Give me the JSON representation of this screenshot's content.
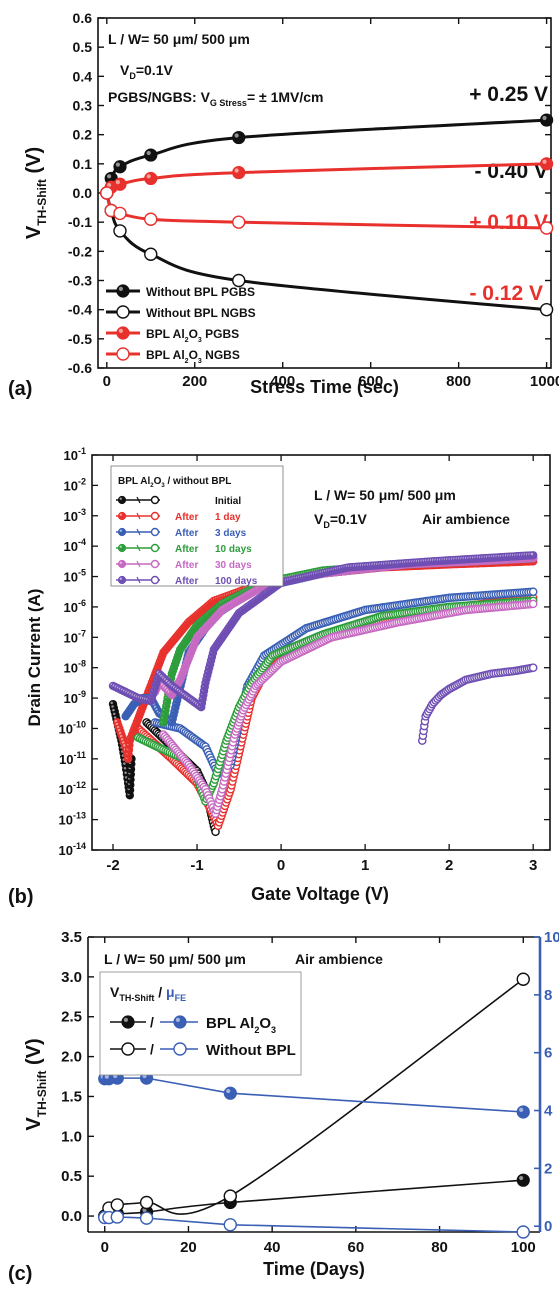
{
  "colors": {
    "black": "#111111",
    "red": "#e8302c",
    "blue": "#3a5fb5",
    "green": "#2e9d3c",
    "pink": "#c66ac2",
    "purple": "#6f4fb3",
    "white": "#ffffff"
  },
  "chart_data": [
    {
      "type": "line",
      "panel_label": "(a)",
      "xlabel": "Stress Time (sec)",
      "ylabel_main": "V",
      "ylabel_sub": "TH-Shift",
      "ylabel_unit": " (V)",
      "xlim": [
        -20,
        1010
      ],
      "ylim": [
        -0.6,
        0.6
      ],
      "xticks": [
        0,
        200,
        400,
        600,
        800,
        1000
      ],
      "yticks": [
        -0.6,
        -0.5,
        -0.4,
        -0.3,
        -0.2,
        -0.1,
        0.0,
        0.1,
        0.2,
        0.3,
        0.4,
        0.5,
        0.6
      ],
      "ytick_labels": [
        "-0.6",
        "-0.5",
        "-0.4",
        "-0.3",
        "-0.2",
        "-0.1",
        "0.0",
        "0.1",
        "0.2",
        "0.3",
        "0.4",
        "0.5",
        "0.6"
      ],
      "info_lines": [
        "L / W= 50 μm/ 500 μm",
        "V_D=0.1V",
        "PGBS/NGBS: V_G Stress = ± 1MV/cm"
      ],
      "info_line1": "L / W= 50 μm/ 500 μm",
      "info_vd": {
        "main": "V",
        "sub": "D",
        "rest": "=0.1V"
      },
      "info_stress": {
        "pre": "PGBS/NGBS: V",
        "sub": "G Stress",
        "post": "= ± 1MV/cm"
      },
      "series": [
        {
          "name": "Without BPL PGBS",
          "legend_parts": [
            "Without BPL PGBS"
          ],
          "color": "black",
          "filled": true,
          "x": [
            0,
            10,
            30,
            100,
            300,
            1000
          ],
          "y": [
            0.0,
            0.05,
            0.09,
            0.13,
            0.19,
            0.25
          ],
          "annotation": "+ 0.25 V"
        },
        {
          "name": "Without BPL NGBS",
          "legend_parts": [
            "Without BPL NGBS"
          ],
          "color": "black",
          "filled": false,
          "x": [
            0,
            10,
            30,
            100,
            300,
            1000
          ],
          "y": [
            0.0,
            -0.06,
            -0.13,
            -0.21,
            -0.3,
            -0.4
          ],
          "annotation": "- 0.40 V"
        },
        {
          "name": "BPL Al2O3 PGBS",
          "legend_parts": [
            "BPL Al",
            "2",
            "O",
            "3",
            " PGBS"
          ],
          "color": "red",
          "filled": true,
          "x": [
            0,
            10,
            30,
            100,
            300,
            1000
          ],
          "y": [
            0.0,
            0.02,
            0.03,
            0.05,
            0.07,
            0.1
          ],
          "annotation": "+ 0.10 V"
        },
        {
          "name": "BPL Al2O3 NGBS",
          "legend_parts": [
            "BPL Al",
            "2",
            "O",
            "3",
            " NGBS"
          ],
          "color": "red",
          "filled": false,
          "x": [
            0,
            10,
            30,
            100,
            300,
            1000
          ],
          "y": [
            0.0,
            -0.06,
            -0.07,
            -0.09,
            -0.1,
            -0.12
          ],
          "annotation": "- 0.12 V"
        }
      ]
    },
    {
      "type": "scatter",
      "panel_label": "(b)",
      "xlabel": "Gate Voltage (V)",
      "ylabel": "Drain Current (A)",
      "xlim": [
        -2.25,
        3.2
      ],
      "ylim_log10": [
        -14,
        -1
      ],
      "yscale": "log",
      "xticks": [
        -2,
        -1,
        0,
        1,
        2,
        3
      ],
      "ytick_exponents": [
        -14,
        -13,
        -12,
        -11,
        -10,
        -9,
        -8,
        -7,
        -6,
        -5,
        -4,
        -3,
        -2,
        -1
      ],
      "info_line1": "L / W= 50 μm/ 500 μm",
      "info_vd": {
        "main": "V",
        "sub": "D",
        "rest": "=0.1V"
      },
      "info_ambience": "Air ambience",
      "legend_title_parts": [
        "BPL Al",
        "2",
        "O",
        "3",
        " / without BPL"
      ],
      "series": [
        {
          "name": "Initial",
          "legend_after": "",
          "legend_label": "Initial",
          "color": "black",
          "filled_x": [
            -2.0,
            -1.95,
            -1.9,
            -1.85,
            -1.82,
            -1.8,
            -1.78
          ],
          "filled_logy": [
            -9.2,
            -9.8,
            -10.4,
            -11.2,
            -11.8,
            -12.2,
            -11.0
          ],
          "open_x": [
            -1.6,
            -1.3,
            -1.0,
            -0.9,
            -0.85,
            -0.8,
            -0.78
          ],
          "open_logy": [
            -9.8,
            -10.6,
            -11.4,
            -12.0,
            -12.6,
            -13.2,
            -13.4
          ]
        },
        {
          "name": "After 1 day",
          "legend_after": "After",
          "legend_label": "1 day",
          "color": "red",
          "filled_x": [
            -1.95,
            -1.9,
            -1.85,
            -1.82,
            -1.8,
            -1.4,
            -1.1,
            -0.8,
            -0.2,
            0.5,
            1.2,
            2.0,
            3.0
          ],
          "filled_logy": [
            -9.8,
            -10.2,
            -10.6,
            -11.0,
            -10.4,
            -7.5,
            -6.5,
            -5.8,
            -5.2,
            -4.9,
            -4.7,
            -4.6,
            -4.5
          ],
          "open_x": [
            -1.7,
            -1.3,
            -1.0,
            -0.85,
            -0.75,
            -0.6,
            -0.45,
            -0.35,
            -0.2,
            0.2,
            0.8,
            1.6,
            2.4,
            3.0
          ],
          "open_logy": [
            -10.0,
            -11.0,
            -11.8,
            -12.6,
            -13.2,
            -12.0,
            -10.2,
            -9.0,
            -8.2,
            -7.3,
            -6.7,
            -6.2,
            -5.9,
            -5.7
          ]
        },
        {
          "name": "After 3 days",
          "legend_after": "After",
          "legend_label": "3 days",
          "color": "blue",
          "filled_x": [
            -1.85,
            -1.75,
            -1.65,
            -1.55,
            -1.45,
            -1.3,
            -1.1,
            -0.8,
            -0.3,
            0.5,
            1.5,
            3.0
          ],
          "filled_logy": [
            -9.6,
            -9.2,
            -9.0,
            -9.0,
            -9.5,
            -9.8,
            -7.5,
            -6.3,
            -5.4,
            -4.9,
            -4.6,
            -4.4
          ],
          "open_x": [
            -1.5,
            -1.2,
            -0.9,
            -0.75,
            -0.6,
            -0.5,
            -0.4,
            -0.2,
            0.3,
            1.0,
            2.0,
            3.0
          ],
          "open_logy": [
            -9.8,
            -10.0,
            -10.6,
            -11.5,
            -11.2,
            -9.8,
            -8.6,
            -7.6,
            -6.7,
            -6.1,
            -5.7,
            -5.5
          ]
        },
        {
          "name": "After 10 days",
          "legend_after": "After",
          "legend_label": "10 days",
          "color": "green",
          "filled_x": [
            -1.4,
            -1.35,
            -1.3,
            -1.2,
            -1.0,
            -0.7,
            -0.2,
            0.5,
            1.5,
            2.3,
            3.0
          ],
          "filled_logy": [
            -9.8,
            -9.0,
            -8.2,
            -7.4,
            -6.6,
            -5.9,
            -5.2,
            -4.8,
            -4.6,
            -4.5,
            -4.4
          ],
          "open_x": [
            -1.7,
            -1.4,
            -1.15,
            -1.0,
            -0.9,
            -0.8,
            -0.65,
            -0.5,
            -0.35,
            -0.1,
            0.5,
            1.2,
            2.0,
            3.0
          ],
          "open_logy": [
            -10.3,
            -10.7,
            -11.0,
            -11.6,
            -12.4,
            -11.8,
            -10.4,
            -9.3,
            -8.5,
            -7.6,
            -6.9,
            -6.3,
            -6.0,
            -5.8
          ]
        },
        {
          "name": "After 30 days",
          "legend_after": "After",
          "legend_label": "30 days",
          "color": "pink",
          "filled_x": [
            -1.5,
            -1.45,
            -1.4,
            -1.3,
            -1.2,
            -1.0,
            -0.7,
            -0.2,
            0.5,
            1.5,
            2.3,
            3.0
          ],
          "filled_logy": [
            -8.8,
            -8.5,
            -8.6,
            -8.9,
            -8.4,
            -7.0,
            -6.1,
            -5.3,
            -4.9,
            -4.6,
            -4.5,
            -4.4
          ],
          "open_x": [
            -1.4,
            -1.1,
            -0.9,
            -0.78,
            -0.7,
            -0.55,
            -0.45,
            -0.3,
            0.0,
            0.6,
            1.4,
            2.2,
            3.0
          ],
          "open_logy": [
            -10.2,
            -11.2,
            -12.0,
            -12.8,
            -12.0,
            -10.2,
            -9.4,
            -8.6,
            -7.8,
            -7.0,
            -6.5,
            -6.1,
            -5.9
          ]
        },
        {
          "name": "After 100 days",
          "legend_after": "After",
          "legend_label": "100 days",
          "color": "purple",
          "filled_x": [
            -2.0,
            -1.85,
            -1.7,
            -1.55,
            -1.45,
            -1.3,
            -1.1,
            -0.95,
            -0.9,
            -0.8,
            -0.5,
            0.0,
            0.8,
            1.8,
            3.0
          ],
          "filled_logy": [
            -8.6,
            -8.8,
            -9.0,
            -9.1,
            -8.2,
            -8.6,
            -9.0,
            -9.3,
            -8.5,
            -7.4,
            -6.2,
            -5.2,
            -4.7,
            -4.5,
            -4.3
          ],
          "open_x": [
            1.68,
            1.72,
            1.8,
            1.9,
            2.0,
            2.2,
            2.5,
            2.8,
            3.0
          ],
          "open_logy": [
            -10.4,
            -9.6,
            -9.2,
            -8.9,
            -8.7,
            -8.4,
            -8.2,
            -8.1,
            -8.0
          ]
        }
      ]
    },
    {
      "type": "line",
      "panel_label": "(c)",
      "xlabel": "Time (Days)",
      "ylabel_main": "V",
      "ylabel_sub": "TH-Shift",
      "ylabel_unit": " (V)",
      "xlim": [
        -4,
        104
      ],
      "ylim": [
        -0.2,
        3.5
      ],
      "ylim_right": [
        -0.2,
        10
      ],
      "xticks": [
        0,
        20,
        40,
        60,
        80,
        100
      ],
      "yticks": [
        0.0,
        0.5,
        1.0,
        1.5,
        2.0,
        2.5,
        3.0,
        3.5
      ],
      "ytick_labels": [
        "0.0",
        "0.5",
        "1.0",
        "1.5",
        "2.0",
        "2.5",
        "3.0",
        "3.5"
      ],
      "yticks_right": [
        0,
        2,
        4,
        6,
        8,
        10
      ],
      "yticks_right_labels": [
        "0",
        "2",
        "4",
        "6",
        "8",
        "10"
      ],
      "info_line1": "L / W= 50 μm/ 500 μm",
      "info_ambience": "Air ambience",
      "legend_header_parts": [
        "V",
        "TH-Shift",
        " / ",
        "μ",
        "FE"
      ],
      "legend_rows": [
        {
          "sep": "/",
          "label_parts": [
            "BPL Al",
            "2",
            "O",
            "3"
          ],
          "filled": true
        },
        {
          "sep": "/",
          "label_parts": [
            "Without BPL"
          ],
          "filled": false
        }
      ],
      "series": [
        {
          "name": "BPL Al2O3 V_TH-Shift",
          "axis": "left",
          "color": "black",
          "filled": true,
          "x": [
            0,
            1,
            3,
            10,
            30,
            100
          ],
          "y": [
            0.0,
            0.02,
            0.03,
            0.05,
            0.17,
            0.45
          ]
        },
        {
          "name": "Without BPL V_TH-Shift",
          "axis": "left",
          "color": "black",
          "filled": false,
          "x": [
            0,
            1,
            3,
            10,
            30,
            100
          ],
          "y": [
            0.0,
            0.1,
            0.14,
            0.17,
            0.25,
            2.97
          ]
        },
        {
          "name": "BPL Al2O3 μFE",
          "axis": "right",
          "color": "blue",
          "filled": true,
          "x": [
            0,
            1,
            3,
            10,
            30,
            100
          ],
          "y": [
            5.1,
            5.1,
            5.12,
            5.12,
            4.6,
            3.95
          ]
        },
        {
          "name": "Without BPL μFE",
          "axis": "right",
          "color": "blue",
          "filled": false,
          "x": [
            0,
            1,
            3,
            10,
            30,
            100
          ],
          "y": [
            0.3,
            0.3,
            0.32,
            0.28,
            0.05,
            -0.2
          ]
        }
      ]
    }
  ]
}
